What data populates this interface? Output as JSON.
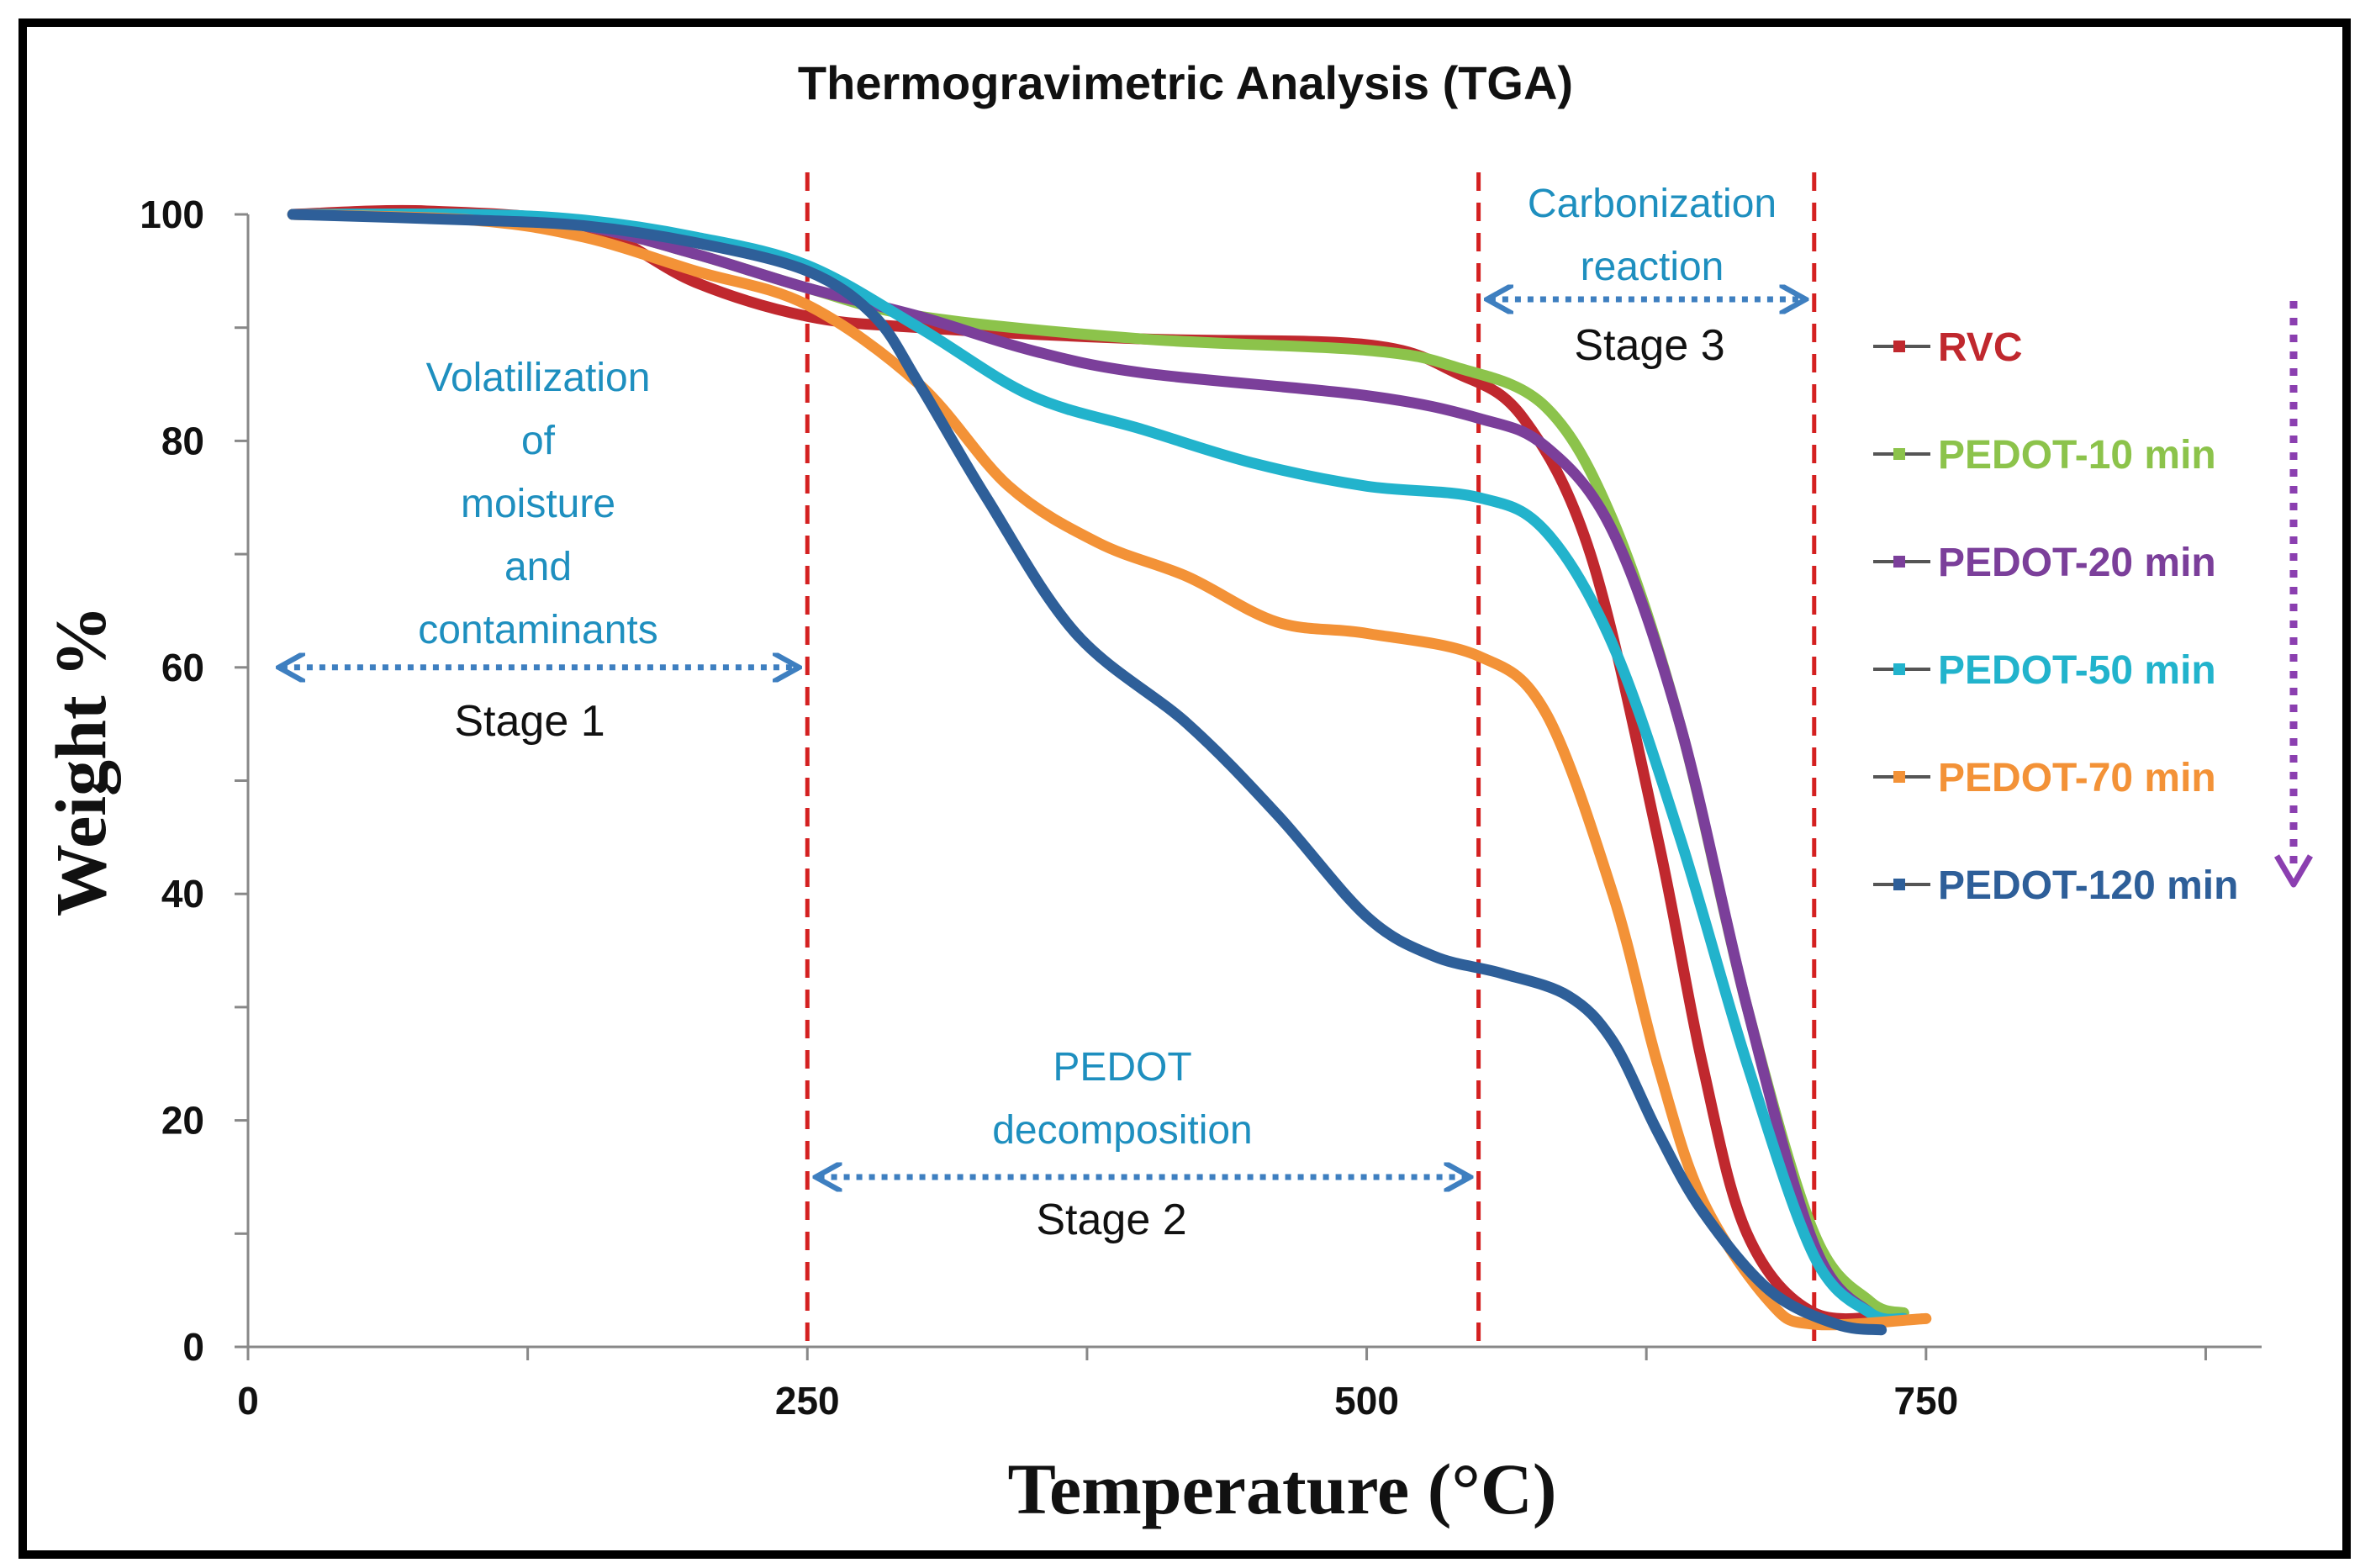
{
  "chart_data": {
    "type": "line",
    "title": "Thermogravimetric Analysis (TGA)",
    "xlabel": "Temperature (°C)",
    "ylabel": "Weight %",
    "xlim": [
      0,
      900
    ],
    "ylim": [
      0,
      100
    ],
    "x_ticks": [
      0,
      250,
      500,
      750
    ],
    "y_ticks": [
      0,
      20,
      40,
      60,
      80,
      100
    ],
    "x_minor_ticks": [
      125,
      375,
      625,
      875
    ],
    "y_minor_ticks": [
      10,
      30,
      50,
      70,
      90
    ],
    "grid": false,
    "legend_position": "right",
    "stage_boundaries": [
      250,
      550,
      700
    ],
    "annotations": [
      {
        "id": "stage1",
        "lines": [
          "Volatilization",
          "of",
          "moisture",
          "and",
          "contaminants"
        ],
        "label": "Stage 1",
        "arrow_from": [
          15,
          60
        ],
        "arrow_to": [
          245,
          60
        ]
      },
      {
        "id": "stage2",
        "lines": [
          "PEDOT",
          "decomposition"
        ],
        "label": "Stage 2",
        "arrow_from": [
          255,
          15
        ],
        "arrow_to": [
          545,
          15
        ]
      },
      {
        "id": "stage3",
        "lines": [
          "Carbonization",
          "reaction"
        ],
        "label": "Stage 3",
        "arrow_from": [
          555,
          92.5
        ],
        "arrow_to": [
          695,
          92.5
        ]
      }
    ],
    "trend_arrow": {
      "color": "#8b3fb0",
      "direction": "down"
    },
    "series": [
      {
        "name": "RVC",
        "color": "#c0282e",
        "points": [
          [
            20,
            100
          ],
          [
            80,
            100.3
          ],
          [
            150,
            99
          ],
          [
            200,
            94
          ],
          [
            250,
            91
          ],
          [
            300,
            90
          ],
          [
            400,
            89
          ],
          [
            500,
            88.5
          ],
          [
            540,
            86
          ],
          [
            570,
            82
          ],
          [
            600,
            70
          ],
          [
            630,
            45
          ],
          [
            650,
            25
          ],
          [
            670,
            10
          ],
          [
            700,
            3
          ],
          [
            740,
            3
          ]
        ]
      },
      {
        "name": "PEDOT-10 min",
        "color": "#8cc34b",
        "points": [
          [
            20,
            100
          ],
          [
            100,
            99.8
          ],
          [
            150,
            99
          ],
          [
            200,
            96.5
          ],
          [
            250,
            93.5
          ],
          [
            300,
            91
          ],
          [
            400,
            89
          ],
          [
            500,
            88
          ],
          [
            540,
            86.5
          ],
          [
            580,
            83
          ],
          [
            610,
            73
          ],
          [
            640,
            55
          ],
          [
            670,
            30
          ],
          [
            700,
            10
          ],
          [
            725,
            4
          ],
          [
            740,
            3
          ]
        ]
      },
      {
        "name": "PEDOT-20 min",
        "color": "#7b3f9a",
        "points": [
          [
            20,
            100
          ],
          [
            100,
            99.8
          ],
          [
            150,
            99
          ],
          [
            200,
            96.5
          ],
          [
            250,
            93.5
          ],
          [
            300,
            91
          ],
          [
            350,
            88
          ],
          [
            400,
            86
          ],
          [
            500,
            84
          ],
          [
            550,
            82
          ],
          [
            580,
            79.5
          ],
          [
            610,
            72
          ],
          [
            640,
            55
          ],
          [
            670,
            30
          ],
          [
            700,
            9
          ],
          [
            725,
            3
          ],
          [
            740,
            2.5
          ]
        ]
      },
      {
        "name": "PEDOT-50 min",
        "color": "#22b3cc",
        "points": [
          [
            20,
            100
          ],
          [
            100,
            100
          ],
          [
            150,
            99.5
          ],
          [
            200,
            98
          ],
          [
            250,
            95.5
          ],
          [
            300,
            90
          ],
          [
            350,
            84
          ],
          [
            400,
            81
          ],
          [
            450,
            78
          ],
          [
            500,
            76
          ],
          [
            550,
            75
          ],
          [
            580,
            72
          ],
          [
            610,
            62
          ],
          [
            640,
            45
          ],
          [
            670,
            25
          ],
          [
            700,
            8
          ],
          [
            725,
            3
          ],
          [
            740,
            2.5
          ]
        ]
      },
      {
        "name": "PEDOT-70 min",
        "color": "#f39237",
        "points": [
          [
            20,
            100
          ],
          [
            100,
            99.5
          ],
          [
            150,
            98
          ],
          [
            200,
            95
          ],
          [
            250,
            92
          ],
          [
            300,
            85
          ],
          [
            340,
            76
          ],
          [
            380,
            71
          ],
          [
            420,
            68
          ],
          [
            460,
            64
          ],
          [
            500,
            63
          ],
          [
            550,
            61
          ],
          [
            580,
            56
          ],
          [
            610,
            40
          ],
          [
            630,
            25
          ],
          [
            650,
            13
          ],
          [
            680,
            4
          ],
          [
            700,
            2
          ],
          [
            750,
            2.5
          ]
        ]
      },
      {
        "name": "PEDOT-120 min",
        "color": "#2e5f99",
        "points": [
          [
            20,
            100
          ],
          [
            100,
            99.5
          ],
          [
            150,
            99
          ],
          [
            200,
            97.5
          ],
          [
            250,
            95
          ],
          [
            280,
            91
          ],
          [
            300,
            85
          ],
          [
            330,
            75
          ],
          [
            370,
            63
          ],
          [
            420,
            55
          ],
          [
            460,
            47
          ],
          [
            500,
            38
          ],
          [
            530,
            34.5
          ],
          [
            560,
            33
          ],
          [
            590,
            31
          ],
          [
            610,
            27
          ],
          [
            630,
            19
          ],
          [
            650,
            12
          ],
          [
            680,
            5
          ],
          [
            710,
            2
          ],
          [
            730,
            1.5
          ]
        ]
      }
    ]
  }
}
